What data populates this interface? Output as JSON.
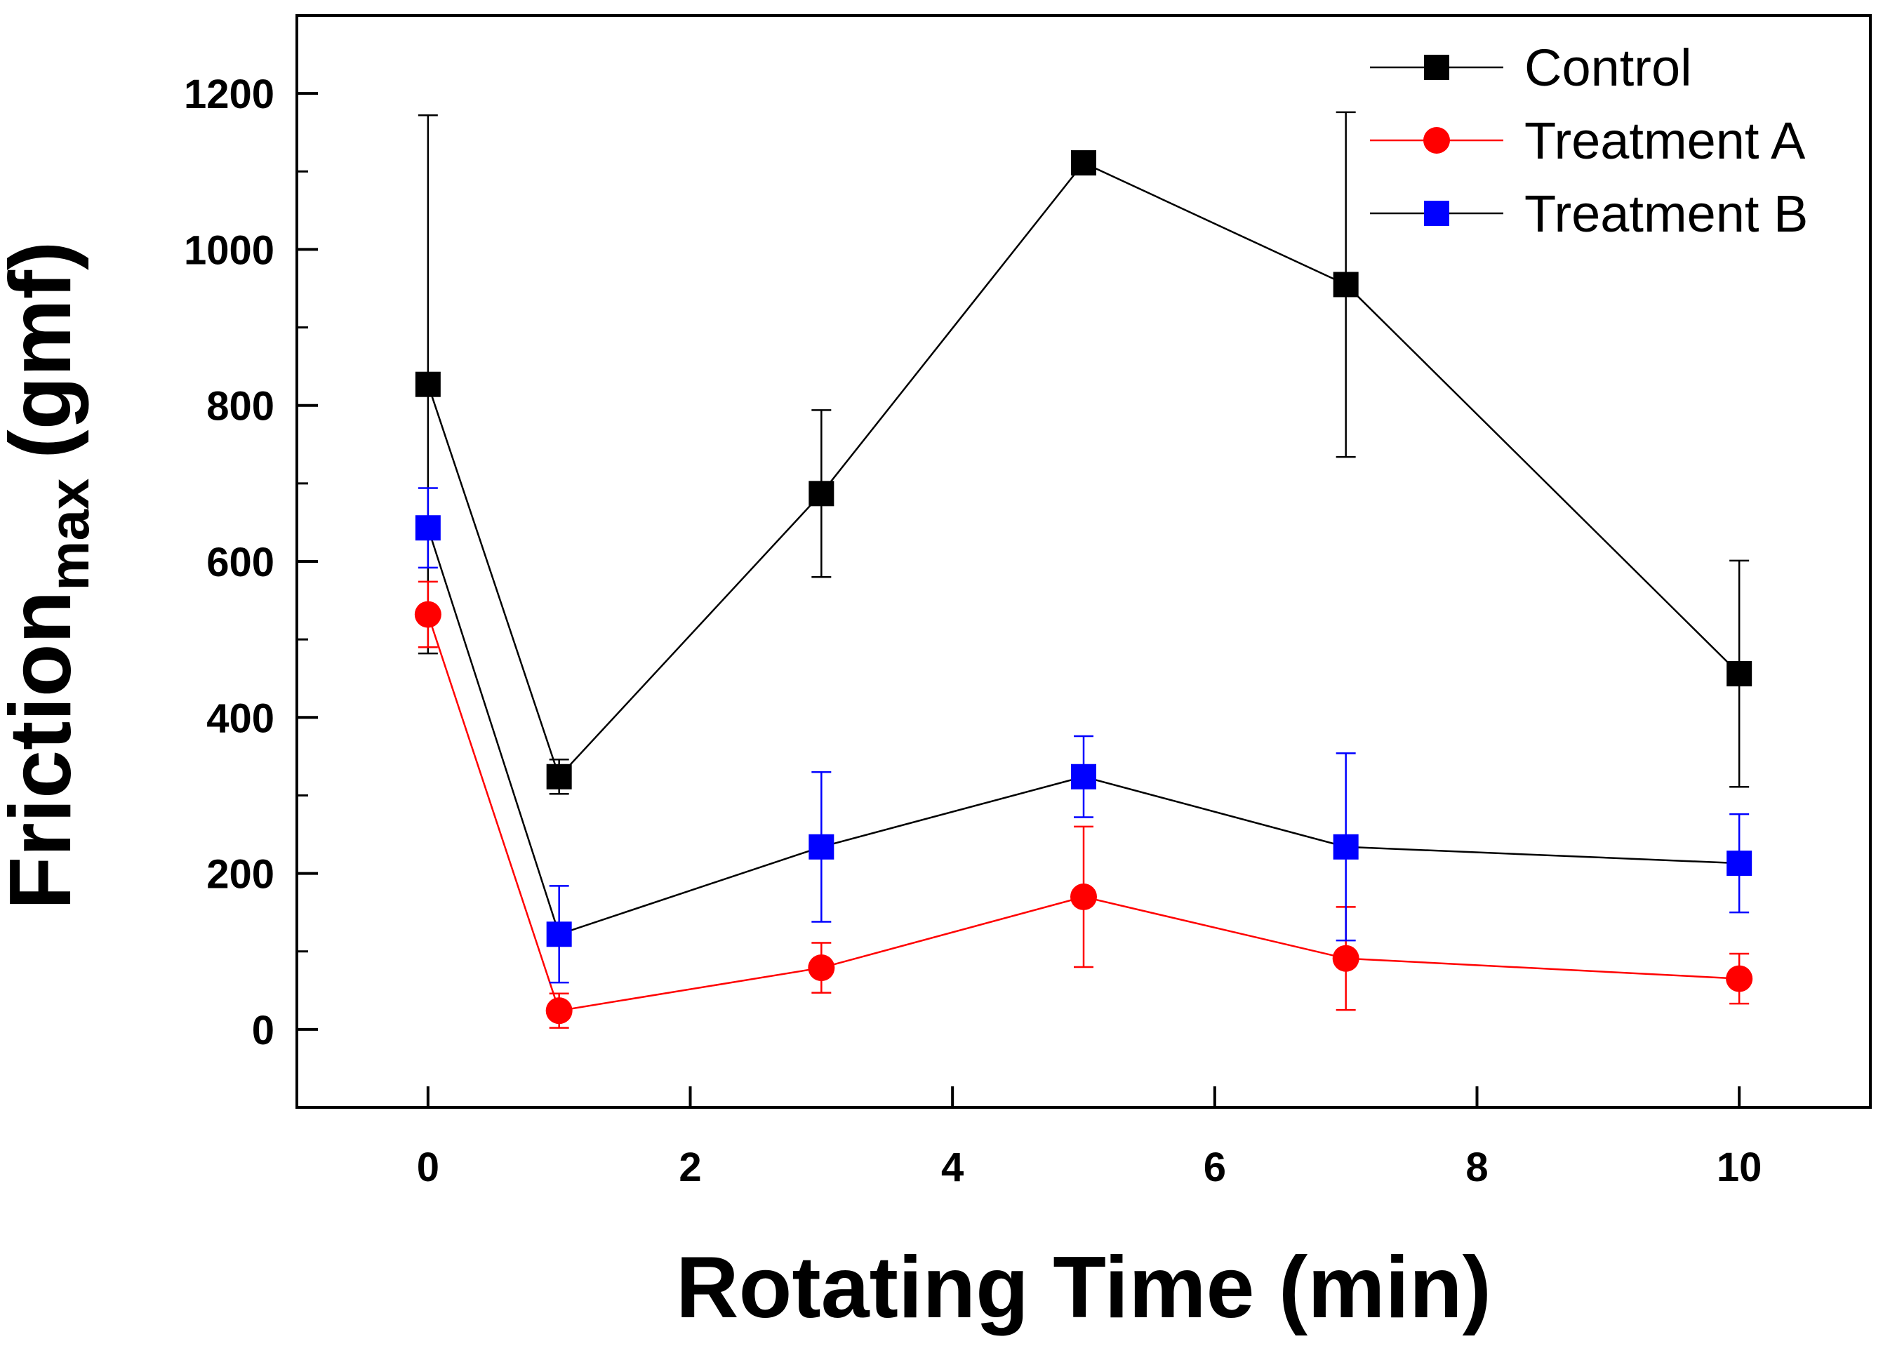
{
  "chart_data": {
    "type": "line",
    "title": "",
    "xlabel": "Rotating Time (min)",
    "ylabel": {
      "main": "Friction",
      "sub": "max",
      "unit": "(gmf)"
    },
    "xlim": [
      -1,
      11
    ],
    "ylim": [
      -100,
      1300
    ],
    "x_ticks": [
      0,
      2,
      4,
      6,
      8,
      10
    ],
    "y_ticks": [
      0,
      200,
      400,
      600,
      800,
      1000,
      1200
    ],
    "grid": false,
    "legend_position": "top-right",
    "x": [
      0,
      1,
      3,
      5,
      7,
      10
    ],
    "series": [
      {
        "name": "Control",
        "marker": "square",
        "marker_color": "#000000",
        "line_color": "#000000",
        "values": [
          827,
          324,
          687,
          1111,
          955,
          456
        ],
        "error_low": [
          482,
          302,
          580,
          1111,
          734,
          311
        ],
        "error_high": [
          1172,
          346,
          794,
          1111,
          1176,
          601
        ]
      },
      {
        "name": "Treatment A",
        "marker": "circle",
        "marker_color": "#ff0000",
        "line_color": "#ff0000",
        "values": [
          532,
          24,
          79,
          170,
          91,
          65
        ],
        "error_low": [
          490,
          2,
          47,
          80,
          25,
          33
        ],
        "error_high": [
          574,
          46,
          111,
          260,
          157,
          97
        ]
      },
      {
        "name": "Treatment B",
        "marker": "square",
        "marker_color": "#0000ff",
        "line_color": "#000000",
        "values": [
          643,
          122,
          234,
          324,
          234,
          213
        ],
        "error_low": [
          592,
          60,
          138,
          272,
          114,
          150
        ],
        "error_high": [
          694,
          184,
          330,
          376,
          354,
          276
        ]
      }
    ]
  }
}
